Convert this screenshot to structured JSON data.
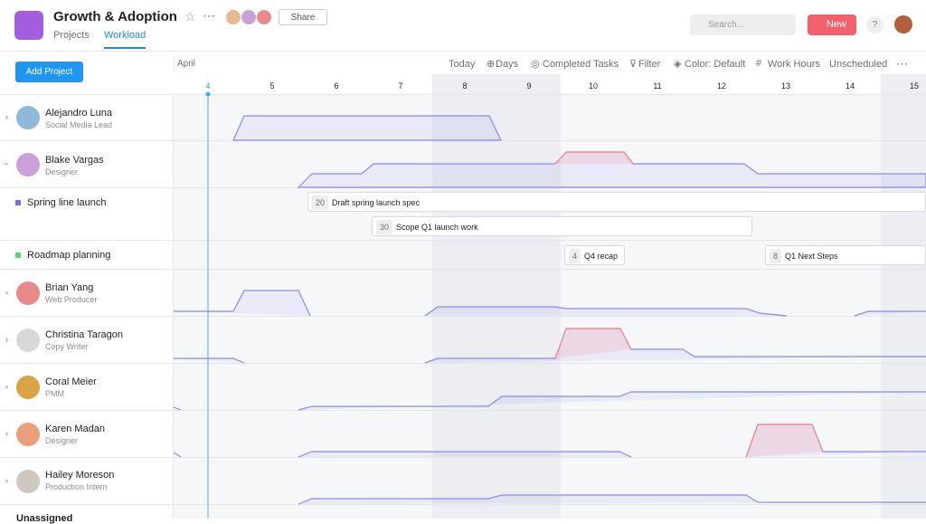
{
  "header": {
    "title": "Growth & Adoption",
    "tabs": [
      "Projects",
      "Workload"
    ],
    "share": "Share",
    "search_placeholder": "Search...",
    "new": "New",
    "help": "?"
  },
  "toolbar": {
    "add_project": "Add Project",
    "month": "April",
    "items": [
      "Today",
      "Days",
      "Completed Tasks",
      "Filter",
      "Color: Default",
      "Work Hours",
      "Unscheduled"
    ]
  },
  "days": [
    4,
    5,
    6,
    7,
    8,
    9,
    10,
    11,
    12,
    13,
    14,
    15
  ],
  "people": [
    {
      "name": "Alejandro Luna",
      "role": "Social Media Lead"
    },
    {
      "name": "Blake Vargas",
      "role": "Designer"
    },
    {
      "name": "Brian Yang",
      "role": "Web Producer"
    },
    {
      "name": "Christina Taragon",
      "role": "Copy Writer"
    },
    {
      "name": "Coral Meier",
      "role": "PMM"
    },
    {
      "name": "Karen Madan",
      "role": "Designer"
    },
    {
      "name": "Hailey Moreson",
      "role": "Production Intern"
    }
  ],
  "projects": [
    {
      "name": "Spring line launch",
      "tasks": [
        {
          "count": 20,
          "name": "Draft spring launch spec"
        },
        {
          "count": 30,
          "name": "Scope Q1 launch work"
        }
      ]
    },
    {
      "name": "Roadmap planning",
      "tasks": [
        {
          "count": 4,
          "name": "Q4 recap"
        },
        {
          "count": 8,
          "name": "Q1 Next Steps"
        }
      ]
    }
  ],
  "unassigned": "Unassigned"
}
